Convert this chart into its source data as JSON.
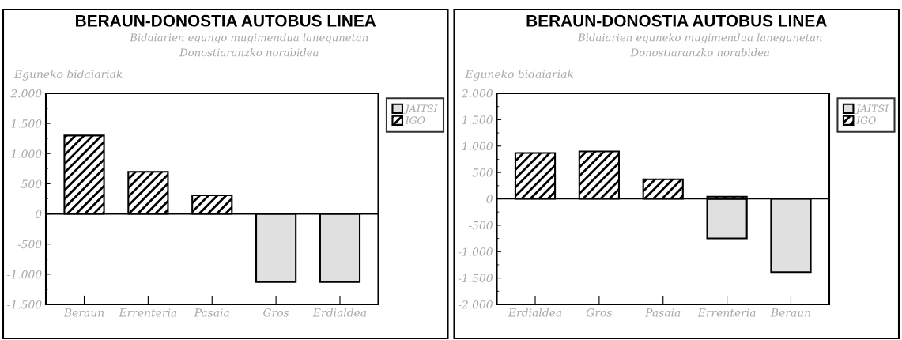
{
  "chart_data": [
    {
      "type": "bar",
      "title": "BERAUN-DONOSTIA AUTOBUS LINEA",
      "subtitle": "Bidaiarien egungo mugimendua lanegunetan\nDonostiaranzko norabidea",
      "ylabel": "Eguneko bidaiariak",
      "categories": [
        "Beraun",
        "Errenteria",
        "Pasaia",
        "Gros",
        "Erdialdea"
      ],
      "series": [
        {
          "name": "JAITSI",
          "color": "#e0e0e0",
          "values": [
            null,
            null,
            null,
            -1130,
            -1130
          ]
        },
        {
          "name": "IGO",
          "color": "#000000",
          "values": [
            1300,
            700,
            310,
            null,
            null
          ]
        }
      ],
      "ylim": [
        -1500,
        2000
      ],
      "yticks": [
        {
          "value": 2000,
          "label": "2.000"
        },
        {
          "value": 1500,
          "label": "1.500"
        },
        {
          "value": 1000,
          "label": "1.000"
        },
        500,
        0,
        {
          "value": -500,
          "label": "-500"
        },
        {
          "value": -1000,
          "label": "-1.000"
        },
        {
          "value": -1500,
          "label": "-1.500"
        }
      ],
      "ref_lines": [
        {
          "axis": "y",
          "value": 0,
          "color": "#000000",
          "line_style": "solid"
        }
      ],
      "grid": false,
      "legend": "right"
    },
    {
      "type": "bar",
      "title": "BERAUN-DONOSTIA AUTOBUS LINEA",
      "subtitle": "Bidaiarien eguneko mugimendua lanegunetan\nDonostiaranzko norabidea",
      "ylabel": "Eguneko bidaiariak",
      "categories": [
        "Erdialdea",
        "Gros",
        "Pasaia",
        "Errenteria",
        "Beraun"
      ],
      "series": [
        {
          "name": "JAITSI",
          "color": "#e0e0e0",
          "values": [
            null,
            null,
            null,
            -750,
            -1390
          ]
        },
        {
          "name": "IGO",
          "color": "#000000",
          "values": [
            870,
            900,
            370,
            40,
            null
          ]
        }
      ],
      "ylim": [
        -2000,
        2000
      ],
      "yticks": [
        {
          "value": 2000,
          "label": "2.000"
        },
        {
          "value": 1500,
          "label": "1.500"
        },
        {
          "value": 1000,
          "label": "1.000"
        },
        500,
        0,
        {
          "value": -500,
          "label": "-500"
        },
        {
          "value": -1000,
          "label": "-1.000"
        },
        {
          "value": -1500,
          "label": "-1.500"
        },
        {
          "value": -2000,
          "label": "-2.000"
        }
      ],
      "ref_lines": [
        {
          "axis": "y",
          "value": 0,
          "color": "#000000",
          "line_style": "solid"
        }
      ],
      "grid": false,
      "legend": "right"
    }
  ]
}
